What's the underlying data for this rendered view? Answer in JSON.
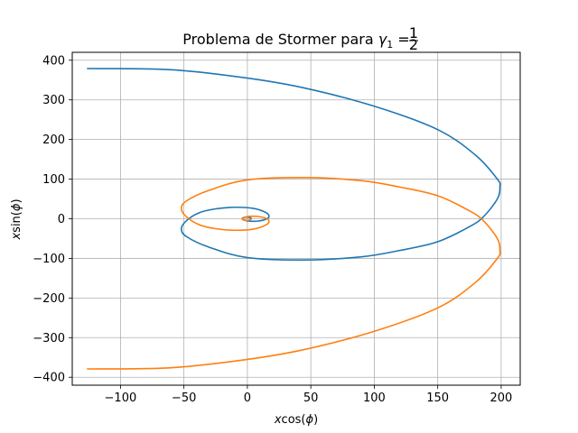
{
  "chart_data": {
    "type": "line",
    "title_text": "Problema de Stormer para ",
    "title_math": "γ",
    "title_sub": "1",
    "title_eq": " = ",
    "title_frac_num": "1",
    "title_frac_den": "2",
    "xlabel_pre": "x",
    "xlabel_fn": "cos(",
    "xlabel_var": "ϕ",
    "xlabel_post": ")",
    "ylabel_pre": "x",
    "ylabel_fn": "sin(",
    "ylabel_var": "ϕ",
    "ylabel_post": ")",
    "xlim": [
      -138,
      215
    ],
    "ylim": [
      -420,
      420
    ],
    "xticks": [
      -100,
      -50,
      0,
      50,
      100,
      150,
      200
    ],
    "xtick_labels": [
      "−100",
      "−50",
      "0",
      "50",
      "100",
      "150",
      "200"
    ],
    "yticks": [
      -400,
      -300,
      -200,
      -100,
      0,
      100,
      200,
      300,
      400
    ],
    "ytick_labels": [
      "−400",
      "−300",
      "−200",
      "−100",
      "0",
      "100",
      "200",
      "300",
      "400"
    ],
    "grid": true,
    "series": [
      {
        "color": "#1f77b4",
        "points": [
          [
            -126,
            379
          ],
          [
            -60,
            376
          ],
          [
            0,
            355
          ],
          [
            45,
            330
          ],
          [
            100,
            284
          ],
          [
            150,
            225
          ],
          [
            180,
            160
          ],
          [
            197,
            100
          ],
          [
            199,
            80
          ],
          [
            197,
            50
          ],
          [
            186,
            5
          ],
          [
            175,
            -20
          ],
          [
            150,
            -58
          ],
          [
            120,
            -80
          ],
          [
            90,
            -96
          ],
          [
            45,
            -104
          ],
          [
            0,
            -98
          ],
          [
            -30,
            -72
          ],
          [
            -48,
            -45
          ],
          [
            -52,
            -25
          ],
          [
            -48,
            -5
          ],
          [
            -38,
            15
          ],
          [
            -25,
            25
          ],
          [
            -10,
            29
          ],
          [
            5,
            26
          ],
          [
            15,
            15
          ],
          [
            17,
            5
          ],
          [
            14,
            -2
          ],
          [
            8,
            -6
          ],
          [
            2,
            -6
          ],
          [
            -2,
            -4
          ],
          [
            -4,
            0
          ],
          [
            -3,
            3
          ],
          [
            0,
            4
          ],
          [
            2,
            3
          ],
          [
            3,
            1
          ]
        ]
      },
      {
        "color": "#ff7f0e",
        "points": [
          [
            -126,
            -379
          ],
          [
            -60,
            -376
          ],
          [
            0,
            -355
          ],
          [
            45,
            -330
          ],
          [
            100,
            -284
          ],
          [
            150,
            -225
          ],
          [
            180,
            -160
          ],
          [
            197,
            -100
          ],
          [
            199,
            -80
          ],
          [
            197,
            -50
          ],
          [
            186,
            -5
          ],
          [
            175,
            20
          ],
          [
            150,
            58
          ],
          [
            120,
            80
          ],
          [
            90,
            96
          ],
          [
            45,
            104
          ],
          [
            0,
            98
          ],
          [
            -30,
            72
          ],
          [
            -48,
            45
          ],
          [
            -52,
            25
          ],
          [
            -48,
            5
          ],
          [
            -38,
            -15
          ],
          [
            -25,
            -25
          ],
          [
            -10,
            -29
          ],
          [
            5,
            -26
          ],
          [
            15,
            -15
          ],
          [
            17,
            -5
          ],
          [
            14,
            2
          ],
          [
            8,
            6
          ],
          [
            2,
            6
          ],
          [
            -2,
            4
          ],
          [
            -4,
            0
          ],
          [
            -3,
            -3
          ],
          [
            0,
            -4
          ],
          [
            2,
            -3
          ],
          [
            3,
            -1
          ]
        ]
      }
    ]
  }
}
